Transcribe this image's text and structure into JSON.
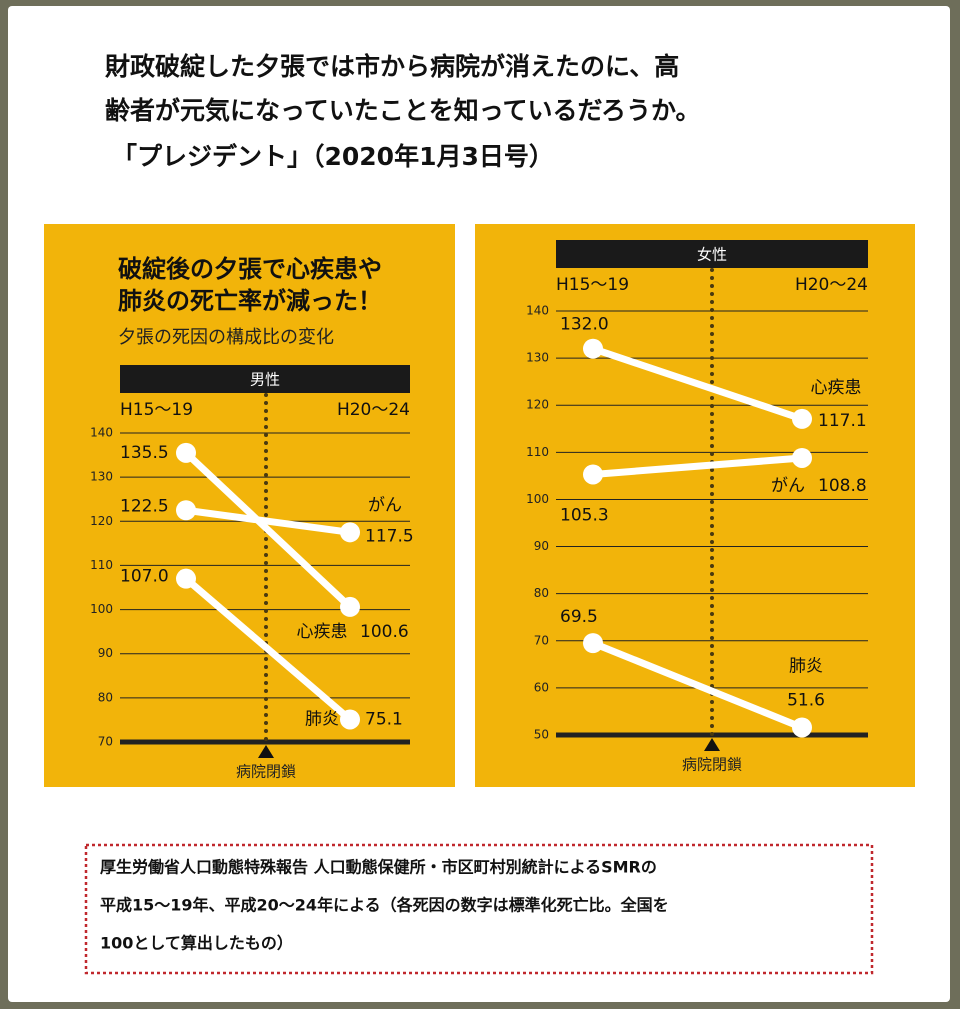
{
  "header": [
    "財政破綻した夕張では市から病院が消えたのに、高",
    "齢者が元気になっていたことを知っているだろうか。",
    "「プレジデント」（2020年1月3日号）"
  ],
  "footnote": [
    "厚生労働省人口動態特殊報告 人口動態保健所・市区町村別統計によるSMRの",
    "平成15〜19年、平成20〜24年による（各死因の数字は標準化死亡比。全国を",
    "100として算出したもの）"
  ],
  "chart_data": [
    {
      "type": "line",
      "title": [
        "破綻後の夕張で心疾患や",
        "肺炎の死亡率が減った！"
      ],
      "subtitle": "夕張の死因の構成比の変化",
      "panel_label": "男性",
      "annotation": "病院閉鎖",
      "categories": [
        "H15〜19",
        "H20〜24"
      ],
      "ylim": [
        70,
        140
      ],
      "yticks": [
        70,
        80,
        90,
        100,
        110,
        120,
        130,
        140
      ],
      "grid": true,
      "series": [
        {
          "name": "がん",
          "color": "#ffffff",
          "values": [
            122.5,
            117.5
          ]
        },
        {
          "name": "心疾患",
          "color": "#ffffff",
          "values": [
            135.5,
            100.6
          ]
        },
        {
          "name": "肺炎",
          "color": "#ffffff",
          "values": [
            107.0,
            75.1
          ],
          "value_labels": [
            "107.0",
            "75.1"
          ]
        }
      ]
    },
    {
      "type": "line",
      "panel_label": "女性",
      "annotation": "病院閉鎖",
      "categories": [
        "H15〜19",
        "H20〜24"
      ],
      "ylim": [
        50,
        140
      ],
      "yticks": [
        50,
        60,
        70,
        80,
        90,
        100,
        110,
        120,
        130,
        140
      ],
      "grid": true,
      "series": [
        {
          "name": "心疾患",
          "color": "#ffffff",
          "values": [
            132.0,
            117.1
          ],
          "value_labels": [
            "132.0",
            "117.1"
          ]
        },
        {
          "name": "がん",
          "color": "#ffffff",
          "values": [
            105.3,
            108.8
          ]
        },
        {
          "name": "肺炎",
          "color": "#ffffff",
          "values": [
            69.5,
            51.6
          ]
        }
      ]
    }
  ]
}
